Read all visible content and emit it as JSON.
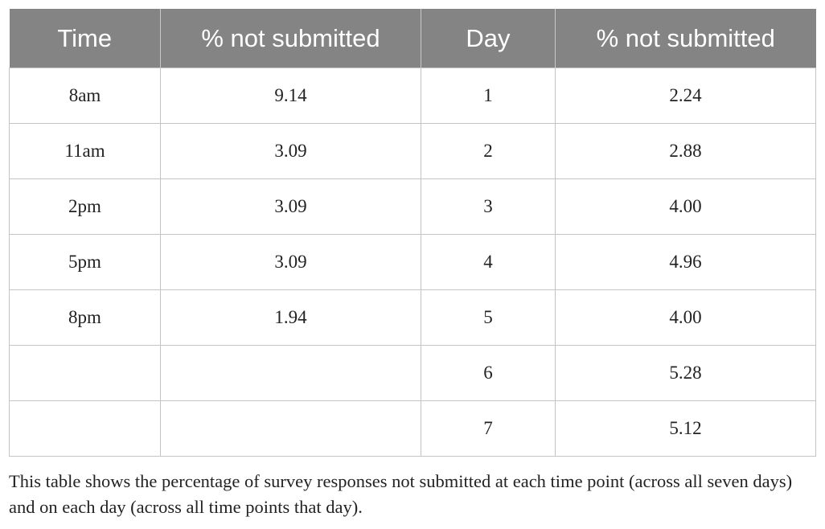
{
  "table": {
    "header": [
      "Time",
      "% not submitted",
      "Day",
      "% not submitted"
    ],
    "rows": [
      [
        "8am",
        "9.14",
        "1",
        "2.24"
      ],
      [
        "11am",
        "3.09",
        "2",
        "2.88"
      ],
      [
        "2pm",
        "3.09",
        "3",
        "4.00"
      ],
      [
        "5pm",
        "3.09",
        "4",
        "4.96"
      ],
      [
        "8pm",
        "1.94",
        "5",
        "4.00"
      ],
      [
        null,
        null,
        "6",
        "5.28"
      ],
      [
        null,
        null,
        "7",
        "5.12"
      ]
    ]
  },
  "caption": "This table shows the percentage of survey responses not submitted at each time point (across all seven days) and on each day (across all time points that day)."
}
